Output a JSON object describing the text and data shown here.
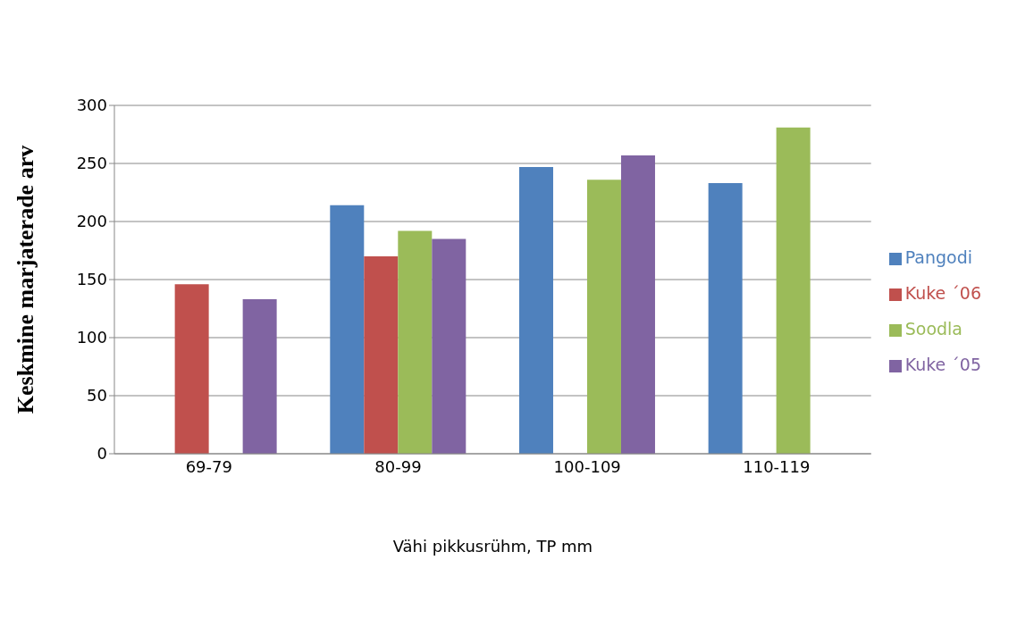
{
  "chart_data": {
    "type": "bar",
    "xlabel": "Vähi pikkusrühm, TP mm",
    "ylabel": "Keskmine marjaterade arv",
    "categories": [
      "69-79",
      "80-99",
      "100-109",
      "110-119"
    ],
    "series": [
      {
        "name": "Pangodi",
        "color": "#4f81bd",
        "values": [
          null,
          214,
          247,
          233
        ]
      },
      {
        "name": "Kuke ´06",
        "color": "#c0504d",
        "values": [
          146,
          170,
          null,
          null
        ]
      },
      {
        "name": "Soodla",
        "color": "#9bbb59",
        "values": [
          null,
          192,
          236,
          281
        ]
      },
      {
        "name": "Kuke ´05",
        "color": "#8064a2",
        "values": [
          133,
          185,
          257,
          null
        ]
      }
    ],
    "ylim": [
      0,
      300
    ],
    "yticks": [
      0,
      50,
      100,
      150,
      200,
      250,
      300
    ],
    "grid": "y",
    "legend": "right"
  }
}
